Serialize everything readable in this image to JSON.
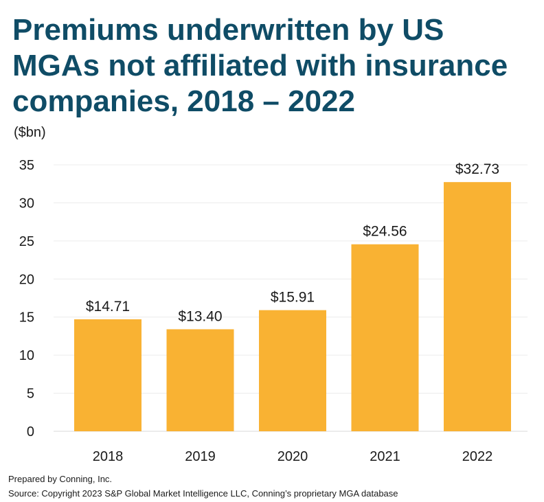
{
  "chart_data": {
    "type": "bar",
    "title": "Premiums underwritten by US MGAs not affiliated with insurance companies, 2018 – 2022",
    "ylabel": "($bn)",
    "xlabel": "",
    "categories": [
      "2018",
      "2019",
      "2020",
      "2021",
      "2022"
    ],
    "values": [
      14.71,
      13.4,
      15.91,
      24.56,
      32.73
    ],
    "data_labels": [
      "$14.71",
      "$13.40",
      "$15.91",
      "$24.56",
      "$32.73"
    ],
    "ylim": [
      0,
      35
    ],
    "yticks": [
      0,
      5,
      10,
      15,
      20,
      25,
      30,
      35
    ],
    "grid": true,
    "legend": "none",
    "bar_color": "#f9b233",
    "title_color": "#0f4c66"
  },
  "footer": {
    "prepared_by": "Prepared by Conning, Inc.",
    "source": "Source: Copyright 2023 S&P Global Market Intelligence LLC, Conning’s proprietary MGA database"
  }
}
